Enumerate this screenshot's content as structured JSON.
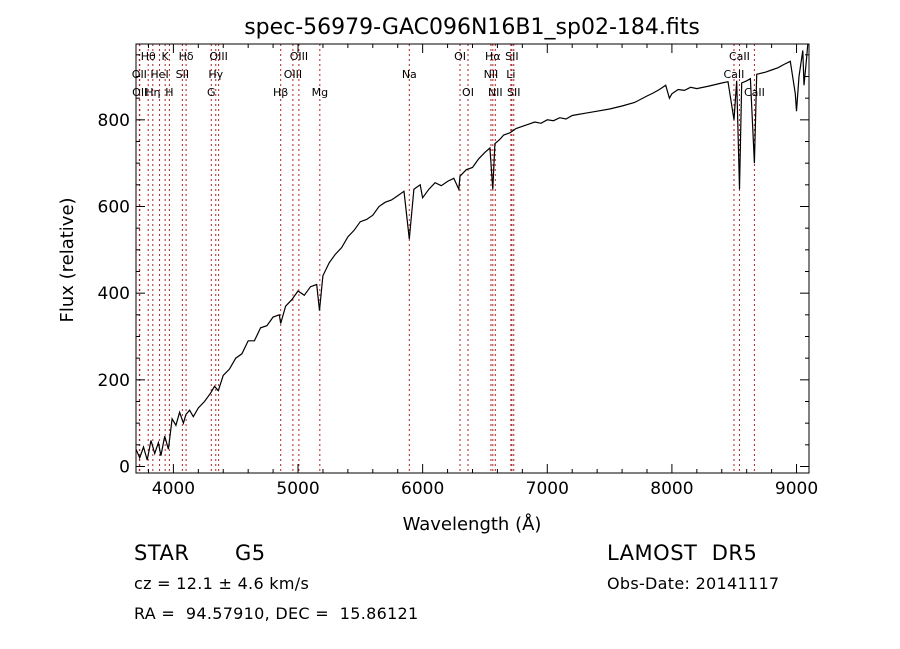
{
  "chart_data": {
    "type": "line",
    "title": "spec-56979-GAC096N16B1_sp02-184.fits",
    "xlabel": "Wavelength (Å)",
    "ylabel": "Flux (relative)",
    "xlim": [
      3700,
      9100
    ],
    "ylim": [
      -15,
      975
    ],
    "x_ticks": [
      4000,
      5000,
      6000,
      7000,
      8000,
      9000
    ],
    "y_ticks": [
      0,
      200,
      400,
      600,
      800
    ],
    "grid": false,
    "series": [
      {
        "points": [
          [
            3700,
            40
          ],
          [
            3730,
            20
          ],
          [
            3760,
            45
          ],
          [
            3790,
            15
          ],
          [
            3820,
            60
          ],
          [
            3850,
            30
          ],
          [
            3880,
            55
          ],
          [
            3900,
            25
          ],
          [
            3930,
            70
          ],
          [
            3960,
            40
          ],
          [
            3990,
            110
          ],
          [
            4020,
            95
          ],
          [
            4050,
            125
          ],
          [
            4080,
            100
          ],
          [
            4100,
            120
          ],
          [
            4130,
            130
          ],
          [
            4160,
            115
          ],
          [
            4200,
            135
          ],
          [
            4250,
            150
          ],
          [
            4300,
            170
          ],
          [
            4330,
            185
          ],
          [
            4360,
            175
          ],
          [
            4400,
            210
          ],
          [
            4450,
            225
          ],
          [
            4500,
            250
          ],
          [
            4550,
            260
          ],
          [
            4600,
            290
          ],
          [
            4650,
            290
          ],
          [
            4700,
            320
          ],
          [
            4750,
            325
          ],
          [
            4800,
            345
          ],
          [
            4850,
            350
          ],
          [
            4861,
            330
          ],
          [
            4900,
            370
          ],
          [
            4950,
            385
          ],
          [
            5000,
            405
          ],
          [
            5050,
            395
          ],
          [
            5100,
            415
          ],
          [
            5150,
            420
          ],
          [
            5172,
            360
          ],
          [
            5200,
            440
          ],
          [
            5250,
            470
          ],
          [
            5300,
            490
          ],
          [
            5350,
            505
          ],
          [
            5400,
            530
          ],
          [
            5450,
            545
          ],
          [
            5500,
            565
          ],
          [
            5550,
            570
          ],
          [
            5600,
            580
          ],
          [
            5650,
            600
          ],
          [
            5700,
            610
          ],
          [
            5750,
            615
          ],
          [
            5800,
            625
          ],
          [
            5850,
            635
          ],
          [
            5893,
            525
          ],
          [
            5930,
            640
          ],
          [
            5980,
            650
          ],
          [
            6000,
            620
          ],
          [
            6050,
            640
          ],
          [
            6100,
            655
          ],
          [
            6150,
            648
          ],
          [
            6200,
            658
          ],
          [
            6250,
            665
          ],
          [
            6290,
            640
          ],
          [
            6300,
            670
          ],
          [
            6350,
            685
          ],
          [
            6400,
            690
          ],
          [
            6450,
            710
          ],
          [
            6500,
            725
          ],
          [
            6540,
            735
          ],
          [
            6563,
            640
          ],
          [
            6580,
            745
          ],
          [
            6620,
            755
          ],
          [
            6650,
            765
          ],
          [
            6700,
            770
          ],
          [
            6750,
            780
          ],
          [
            6800,
            785
          ],
          [
            6850,
            790
          ],
          [
            6900,
            795
          ],
          [
            6950,
            792
          ],
          [
            7000,
            800
          ],
          [
            7050,
            798
          ],
          [
            7100,
            805
          ],
          [
            7150,
            802
          ],
          [
            7200,
            810
          ],
          [
            7300,
            815
          ],
          [
            7400,
            820
          ],
          [
            7500,
            825
          ],
          [
            7600,
            832
          ],
          [
            7700,
            840
          ],
          [
            7800,
            855
          ],
          [
            7850,
            862
          ],
          [
            7900,
            870
          ],
          [
            7950,
            880
          ],
          [
            7980,
            850
          ],
          [
            8000,
            860
          ],
          [
            8050,
            870
          ],
          [
            8100,
            868
          ],
          [
            8150,
            875
          ],
          [
            8200,
            872
          ],
          [
            8300,
            878
          ],
          [
            8400,
            885
          ],
          [
            8450,
            888
          ],
          [
            8498,
            800
          ],
          [
            8520,
            890
          ],
          [
            8542,
            640
          ],
          [
            8560,
            885
          ],
          [
            8600,
            890
          ],
          [
            8630,
            895
          ],
          [
            8662,
            700
          ],
          [
            8680,
            905
          ],
          [
            8750,
            910
          ],
          [
            8800,
            915
          ],
          [
            8850,
            920
          ],
          [
            8900,
            928
          ],
          [
            8950,
            935
          ],
          [
            8990,
            860
          ],
          [
            9000,
            820
          ],
          [
            9020,
            900
          ],
          [
            9050,
            960
          ],
          [
            9060,
            880
          ],
          [
            9080,
            940
          ],
          [
            9090,
            990
          ]
        ]
      }
    ],
    "lines": [
      {
        "label": "Hθ",
        "x": 3798,
        "row": 0
      },
      {
        "label": "K",
        "x": 3934,
        "row": 0
      },
      {
        "label": "Hδ",
        "x": 4102,
        "row": 0
      },
      {
        "label": "OIII",
        "x": 4363,
        "row": 0
      },
      {
        "label": "OIII",
        "x": 5007,
        "row": 0
      },
      {
        "label": "OI",
        "x": 6300,
        "row": 0
      },
      {
        "label": "Hα",
        "x": 6563,
        "row": 0
      },
      {
        "label": "SII",
        "x": 6716,
        "row": 0
      },
      {
        "label": "CaII",
        "x": 8542,
        "row": 0
      },
      {
        "label": "OII",
        "x": 3727,
        "row": 1
      },
      {
        "label": "HeI",
        "x": 3889,
        "row": 1
      },
      {
        "label": "SII",
        "x": 4072,
        "row": 1
      },
      {
        "label": "Hγ",
        "x": 4340,
        "row": 1
      },
      {
        "label": "OIII",
        "x": 4959,
        "row": 1
      },
      {
        "label": "Na",
        "x": 5893,
        "row": 1
      },
      {
        "label": "NII",
        "x": 6548,
        "row": 1
      },
      {
        "label": "Li",
        "x": 6708,
        "row": 1
      },
      {
        "label": "CaII",
        "x": 8498,
        "row": 1
      },
      {
        "label": "OII",
        "x": 3730,
        "row": 2
      },
      {
        "label": "Hη",
        "x": 3835,
        "row": 2
      },
      {
        "label": "H",
        "x": 3968,
        "row": 2
      },
      {
        "label": "G",
        "x": 4304,
        "row": 2
      },
      {
        "label": "Hβ",
        "x": 4861,
        "row": 2
      },
      {
        "label": "Mg",
        "x": 5175,
        "row": 2
      },
      {
        "label": "OI",
        "x": 6364,
        "row": 2
      },
      {
        "label": "NII",
        "x": 6583,
        "row": 2
      },
      {
        "label": "SII",
        "x": 6731,
        "row": 2
      },
      {
        "label": "CaII",
        "x": 8662,
        "row": 2
      }
    ],
    "line_color": "#b22222"
  },
  "footer": {
    "object_class": "STAR",
    "subclass": "G5",
    "survey": "LAMOST  DR5",
    "redshift": "cz = 12.1 ± 4.6 km/s",
    "obs_date": "Obs-Date: 20141117",
    "coords": "RA =  94.57910, DEC =  15.86121"
  }
}
